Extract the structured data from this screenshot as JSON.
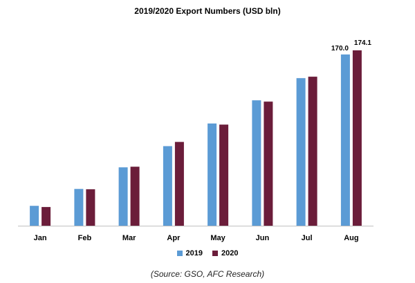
{
  "chart_data": {
    "type": "bar",
    "title": "2019/2020 Export Numbers (USD bln)",
    "categories": [
      "Jan",
      "Feb",
      "Mar",
      "Apr",
      "May",
      "Jun",
      "Jul",
      "Aug"
    ],
    "series": [
      {
        "name": "2019",
        "color": "#5b9bd5",
        "values": [
          19.7,
          36.5,
          58.0,
          79.0,
          101.5,
          124.5,
          146.5,
          170.0
        ]
      },
      {
        "name": "2020",
        "color": "#6b1d3a",
        "values": [
          18.6,
          36.2,
          58.6,
          83.2,
          100.4,
          123.2,
          147.9,
          174.1
        ]
      }
    ],
    "data_labels": [
      {
        "category": "Aug",
        "series": "2019",
        "text": "170.0"
      },
      {
        "category": "Aug",
        "series": "2020",
        "text": "174.1"
      }
    ],
    "ylim": [
      0,
      185
    ],
    "grid": false,
    "legend_position": "bottom"
  },
  "source_note": "(Source: GSO, AFC Research)"
}
